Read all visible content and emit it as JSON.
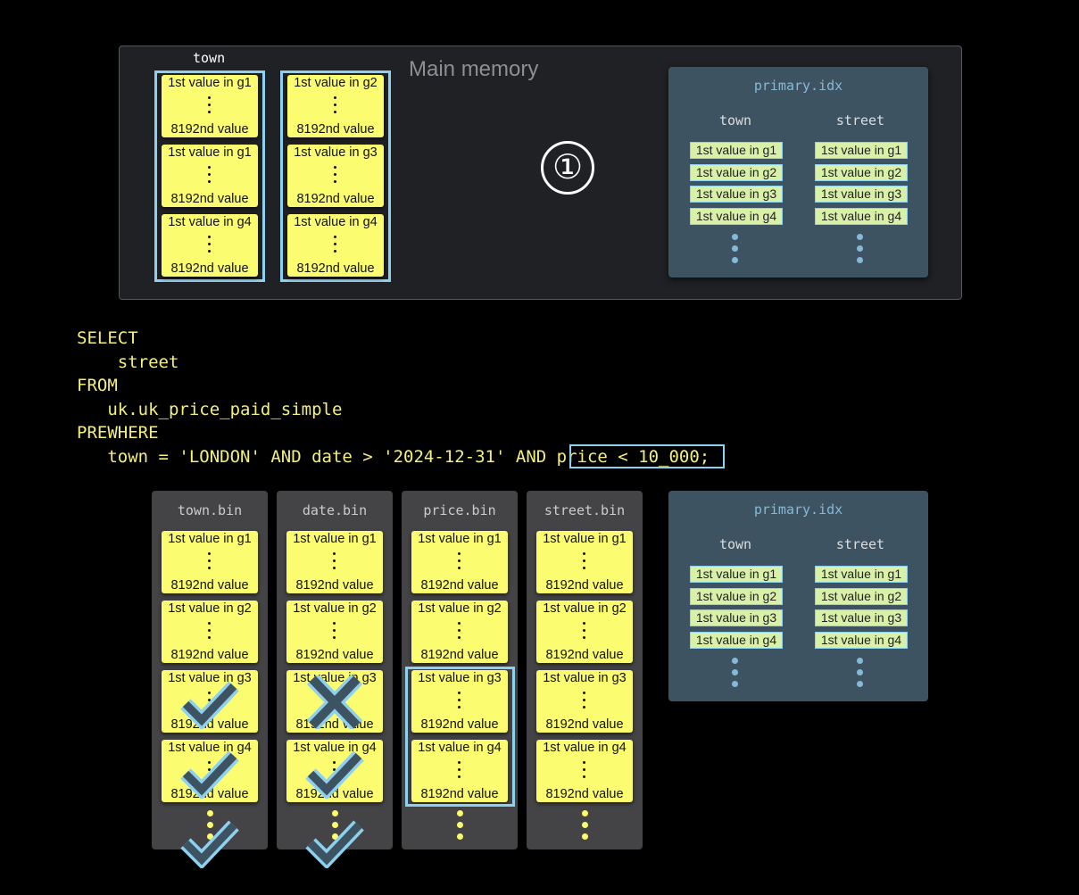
{
  "main_memory": {
    "label": "Main memory",
    "column_label": "town",
    "columns": [
      {
        "blocks": [
          {
            "first": "1st value in g1",
            "last": "8192nd value"
          },
          {
            "first": "1st value in g1",
            "last": "8192nd value"
          },
          {
            "first": "1st value in g4",
            "last": "8192nd value"
          }
        ]
      },
      {
        "blocks": [
          {
            "first": "1st value in g2",
            "last": "8192nd value"
          },
          {
            "first": "1st value in g3",
            "last": "8192nd value"
          },
          {
            "first": "1st value in g4",
            "last": "8192nd value"
          }
        ]
      }
    ],
    "step": "①"
  },
  "primary_idx": {
    "title": "primary.idx",
    "columns": [
      {
        "name": "town",
        "entries": [
          "1st value in g1",
          "1st value in g2",
          "1st value in g3",
          "1st value in g4"
        ]
      },
      {
        "name": "street",
        "entries": [
          "1st value in g1",
          "1st value in g2",
          "1st value in g3",
          "1st value in g4"
        ]
      }
    ]
  },
  "sql": {
    "lines": [
      "SELECT",
      "    street",
      "FROM",
      "   uk.uk_price_paid_simple",
      "PREWHERE",
      "   town = 'LONDON' AND date > '2024-12-31' AND "
    ],
    "highlight": "price < 10_000",
    "end": ";"
  },
  "files": [
    {
      "name": "town.bin",
      "blocks": [
        "1st value in g1",
        "1st value in g2",
        "1st value in g3",
        "1st value in g4"
      ],
      "marks": [
        null,
        "check",
        "check",
        "check"
      ],
      "highlighted": false
    },
    {
      "name": "date.bin",
      "blocks": [
        "1st value in g1",
        "1st value in g2",
        "1st value in g3",
        "1st value in g4"
      ],
      "marks": [
        null,
        "cross",
        "check",
        "check"
      ],
      "highlighted": false
    },
    {
      "name": "price.bin",
      "blocks": [
        "1st value in g1",
        "1st value in g2",
        "1st value in g3",
        "1st value in g4"
      ],
      "marks": [
        null,
        null,
        null,
        null
      ],
      "highlighted": true
    },
    {
      "name": "street.bin",
      "blocks": [
        "1st value in g1",
        "1st value in g2",
        "1st value in g3",
        "1st value in g4"
      ],
      "marks": [
        null,
        null,
        null,
        null
      ],
      "highlighted": false
    }
  ],
  "block_last": "8192nd value",
  "colors": {
    "block": "#fcfc70",
    "highlight": "#8ed0ee",
    "index_bg": "#3d5361",
    "sql": "#f5f07a"
  }
}
